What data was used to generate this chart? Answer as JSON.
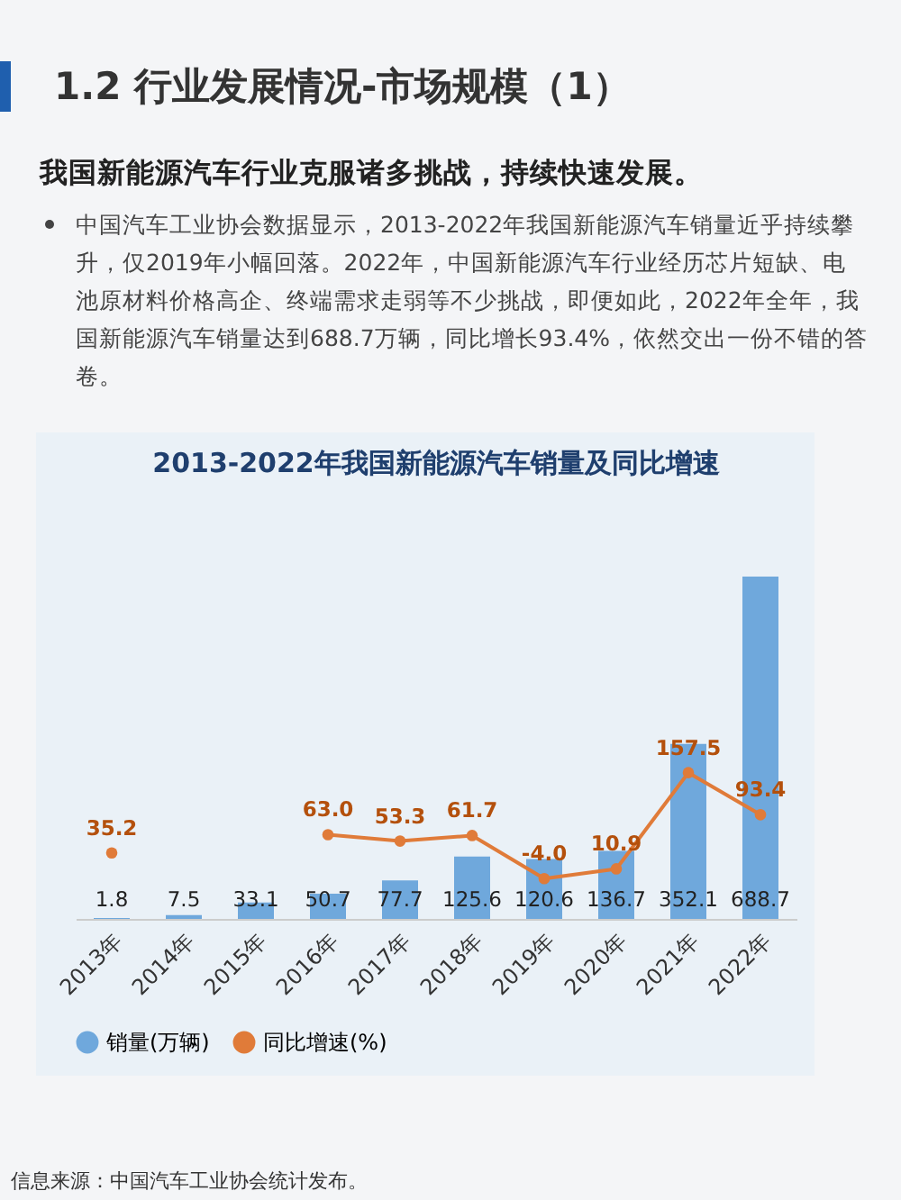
{
  "chart_data": {
    "type": "bar",
    "title": "2013-2022年我国新能源汽车销量及同比增速",
    "annotations": [
      "1.2 行业发展情况-市场规模（1）",
      "我国新能源汽车行业克服诸多挑战，持续快速发展。",
      "中国汽车工业协会数据显示，2013-2022年我国新能源汽车销量近乎持续攀升，仅2019年小幅回落。2022年，中国新能源汽车行业经历芯片短缺、电池原材料价格高企、终端需求走弱等不少挑战，即便如此，2022年全年，我国新能源汽车销量达到688.7万辆，同比增长93.4%，依然交出一份不错的答卷。",
      "信息来源：中国汽车工业协会统计发布。"
    ],
    "categories": [
      "2013年",
      "2014年",
      "2015年",
      "2016年",
      "2017年",
      "2018年",
      "2019年",
      "2020年",
      "2021年",
      "2022年"
    ],
    "series": [
      {
        "name": "销量(万辆)",
        "type": "bar",
        "color": "#6fa8dc",
        "values": [
          1.8,
          7.5,
          33.1,
          50.7,
          77.7,
          125.6,
          120.6,
          136.7,
          352.1,
          688.7
        ]
      },
      {
        "name": "同比增速(%)",
        "type": "line",
        "axis": "y2",
        "color": "#e07b39",
        "values": [
          35.2,
          null,
          null,
          63.0,
          53.3,
          61.7,
          -4.0,
          10.9,
          157.5,
          93.4
        ],
        "value_labels": [
          "35.2",
          null,
          null,
          "63.0",
          "53.3",
          "61.7",
          "-4.0",
          "10.9",
          "157.5",
          "93.4"
        ]
      }
    ],
    "data_labels": true,
    "legend": "bottom",
    "marker": "circle",
    "grid": false
  }
}
